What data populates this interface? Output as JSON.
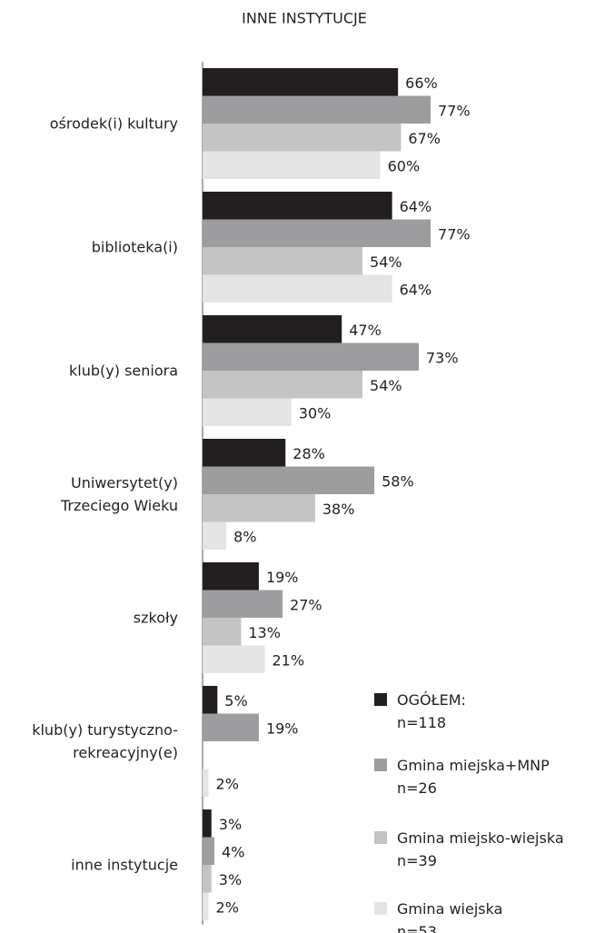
{
  "chart_data": {
    "type": "barh",
    "title": "INNE INSTYTUCJE",
    "categories": [
      "ośrodek(i) kultury",
      "biblioteka(i)",
      "klub(y) seniora",
      "Uniwersytet(y)\nTrzeciego Wieku",
      "szkoły",
      "klub(y) turystyczno-\nrekreacyjny(e)",
      "inne instytucje"
    ],
    "series": [
      {
        "name": "OGÓŁEM:\nn=118",
        "color": "#231f20",
        "values": [
          66,
          64,
          47,
          28,
          19,
          5,
          3
        ],
        "value_labels": [
          "66%",
          "64%",
          "47%",
          "28%",
          "19%",
          "5%",
          "3%"
        ]
      },
      {
        "name": "Gmina miejska+MNP\nn=26",
        "color": "#9d9d9f",
        "values": [
          77,
          77,
          73,
          58,
          27,
          19,
          4
        ],
        "value_labels": [
          "77%",
          "77%",
          "73%",
          "58%",
          "27%",
          "19%",
          "4%"
        ]
      },
      {
        "name": "Gmina miejsko-wiejska\nn=39",
        "color": "#c4c4c5",
        "values": [
          67,
          54,
          54,
          38,
          13,
          0,
          3
        ],
        "value_labels": [
          "67%",
          "54%",
          "54%",
          "38%",
          "13%",
          null,
          "3%"
        ]
      },
      {
        "name": "Gmina wiejska\nn=53",
        "color": "#e4e4e5",
        "values": [
          60,
          64,
          30,
          8,
          21,
          2,
          2
        ],
        "value_labels": [
          "60%",
          "64%",
          "30%",
          "8%",
          "21%",
          "2%",
          "2%"
        ]
      }
    ],
    "xlim": [
      0,
      100
    ],
    "legend": "lower right"
  }
}
